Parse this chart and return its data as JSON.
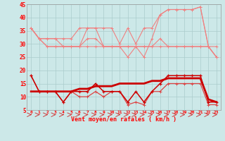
{
  "x": [
    0,
    1,
    2,
    3,
    4,
    5,
    6,
    7,
    8,
    9,
    10,
    11,
    12,
    13,
    14,
    15,
    16,
    17,
    18,
    19,
    20,
    21,
    22,
    23
  ],
  "upper_max": [
    36,
    32,
    32,
    32,
    32,
    32,
    36,
    36,
    36,
    36,
    36,
    30,
    36,
    30,
    36,
    36,
    41,
    43,
    43,
    43,
    43,
    44,
    29,
    25
  ],
  "upper_mid1": [
    36,
    32,
    32,
    32,
    29,
    29,
    29,
    36,
    36,
    29,
    29,
    29,
    25,
    29,
    25,
    32,
    41,
    43,
    43,
    43,
    43,
    44,
    29,
    25
  ],
  "upper_mid2": [
    36,
    32,
    29,
    29,
    29,
    29,
    29,
    32,
    32,
    29,
    29,
    29,
    29,
    29,
    29,
    29,
    32,
    29,
    29,
    29,
    29,
    29,
    29,
    29
  ],
  "upper_min": [
    36,
    32,
    29,
    29,
    29,
    29,
    29,
    29,
    29,
    29,
    29,
    29,
    29,
    29,
    29,
    29,
    29,
    29,
    29,
    29,
    29,
    29,
    29,
    25
  ],
  "lower_high": [
    18,
    12,
    12,
    12,
    8,
    12,
    12,
    12,
    15,
    12,
    12,
    12,
    8,
    12,
    8,
    12,
    15,
    18,
    18,
    18,
    18,
    18,
    8,
    8
  ],
  "lower_low": [
    18,
    12,
    12,
    12,
    8,
    12,
    10,
    10,
    12,
    10,
    12,
    12,
    7,
    8,
    7,
    12,
    12,
    15,
    15,
    15,
    15,
    15,
    7,
    7
  ],
  "trend": [
    12,
    12,
    12,
    12,
    12,
    12,
    13,
    13,
    14,
    14,
    14,
    15,
    15,
    15,
    15,
    16,
    16,
    17,
    17,
    17,
    17,
    17,
    9,
    8
  ],
  "background_color": "#cce8e8",
  "grid_color": "#aacccc",
  "line_light": "#f08080",
  "line_medium": "#dd4444",
  "line_dark": "#cc0000",
  "xlabel": "Vent moyen/en rafales ( km/h )",
  "ylim": [
    5,
    45
  ],
  "yticks": [
    5,
    10,
    15,
    20,
    25,
    30,
    35,
    40,
    45
  ],
  "xlim": [
    -0.5,
    23.5
  ]
}
